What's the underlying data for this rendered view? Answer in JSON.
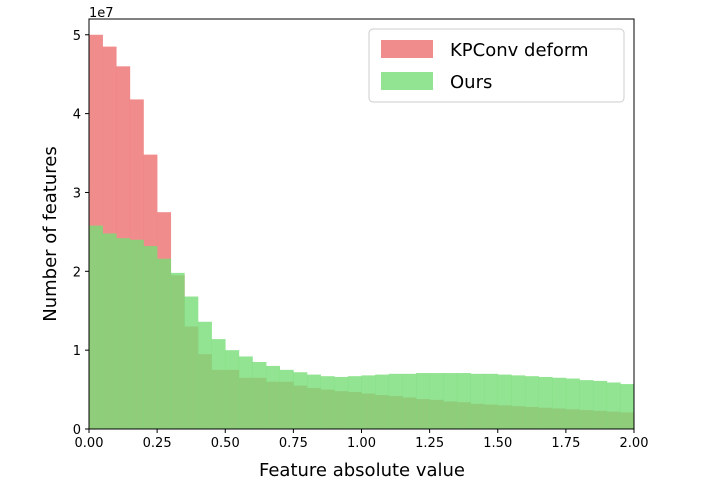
{
  "chart_data": {
    "type": "bar",
    "xlabel": "Feature absolute value",
    "ylabel": "Number of features",
    "xlim": [
      0,
      2.0
    ],
    "ylim": [
      0,
      5.2
    ],
    "y_offset_label": "1e7",
    "xticks": [
      "0.00",
      "0.25",
      "0.50",
      "0.75",
      "1.00",
      "1.25",
      "1.50",
      "1.75",
      "2.00"
    ],
    "yticks": [
      "0",
      "1",
      "2",
      "3",
      "4",
      "5"
    ],
    "grid": false,
    "legend_position": "top-right",
    "bin_width": 0.05,
    "bin_starts": [
      0.0,
      0.05,
      0.1,
      0.15,
      0.2,
      0.25,
      0.3,
      0.35,
      0.4,
      0.45,
      0.5,
      0.55,
      0.6,
      0.65,
      0.7,
      0.75,
      0.8,
      0.85,
      0.9,
      0.95,
      1.0,
      1.05,
      1.1,
      1.15,
      1.2,
      1.25,
      1.3,
      1.35,
      1.4,
      1.45,
      1.5,
      1.55,
      1.6,
      1.65,
      1.7,
      1.75,
      1.8,
      1.85,
      1.9,
      1.95
    ],
    "series": [
      {
        "name": "KPConv deform",
        "color": "#f08080",
        "values": [
          5.0,
          4.85,
          4.6,
          4.18,
          3.48,
          2.75,
          1.95,
          1.3,
          0.95,
          0.75,
          0.75,
          0.65,
          0.65,
          0.6,
          0.6,
          0.55,
          0.52,
          0.5,
          0.48,
          0.47,
          0.45,
          0.43,
          0.42,
          0.4,
          0.38,
          0.37,
          0.35,
          0.34,
          0.32,
          0.31,
          0.3,
          0.29,
          0.28,
          0.27,
          0.26,
          0.25,
          0.24,
          0.23,
          0.22,
          0.21
        ]
      },
      {
        "name": "Ours",
        "color": "#77dd77",
        "values": [
          2.58,
          2.48,
          2.42,
          2.4,
          2.32,
          2.16,
          1.98,
          1.68,
          1.36,
          1.14,
          1.0,
          0.92,
          0.85,
          0.8,
          0.75,
          0.72,
          0.69,
          0.67,
          0.66,
          0.67,
          0.68,
          0.69,
          0.7,
          0.7,
          0.71,
          0.71,
          0.71,
          0.71,
          0.7,
          0.7,
          0.69,
          0.68,
          0.67,
          0.66,
          0.65,
          0.64,
          0.62,
          0.61,
          0.59,
          0.57
        ]
      }
    ]
  }
}
